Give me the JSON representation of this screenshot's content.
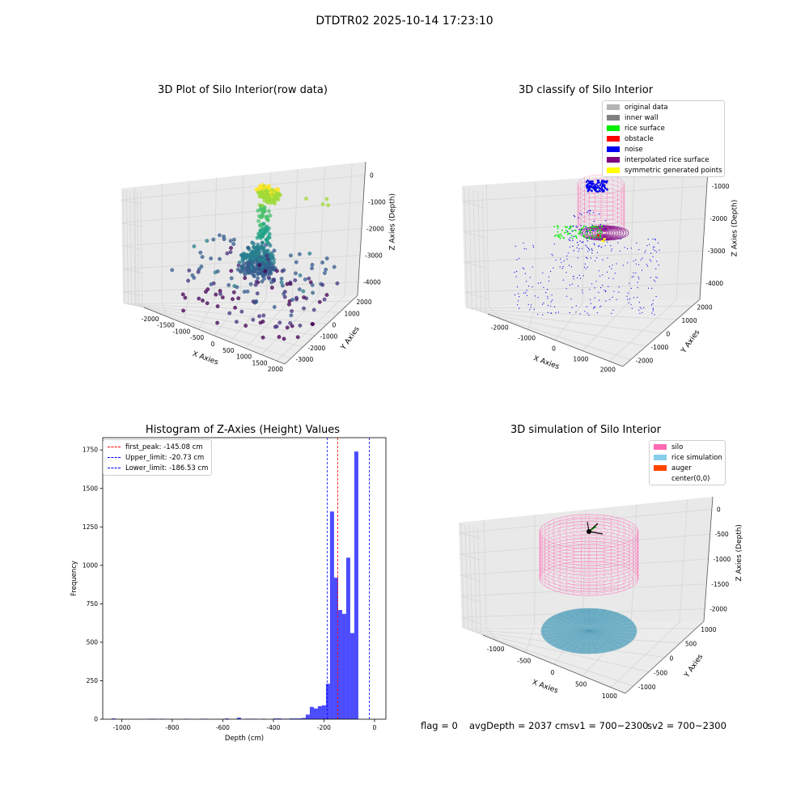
{
  "figure": {
    "suptitle": "DTDTR02 2025-10-14 17:23:10",
    "status": {
      "flag": "flag = 0",
      "avgdepth": "avgDepth = 2037 cmsv1 = 700~2300",
      "sv2": "sv2 = 700~2300"
    }
  },
  "panels": {
    "raw": {
      "title": "3D Plot of Silo Interior(row data)",
      "xlabel": "X Axies",
      "ylabel": "Y Axies",
      "zlabel": "Z Axies (Depth)",
      "xticks": [
        "-2000",
        "-1500",
        "-1000",
        "-500",
        "0",
        "500",
        "1000",
        "1500",
        "2000"
      ],
      "yticks": [
        "-3000",
        "-2000",
        "-1000",
        "0",
        "1000",
        "2000"
      ],
      "zticks": [
        "0",
        "-1000",
        "-2000",
        "-3000",
        "-4000"
      ]
    },
    "classify": {
      "title": "3D classify of Silo Interior",
      "xlabel": "X Axies",
      "ylabel": "Y Axies",
      "zlabel": "Z Axies (Depth)",
      "xticks": [
        "-2000",
        "-1000",
        "0",
        "1000",
        "2000"
      ],
      "yticks": [
        "-2000",
        "-1000",
        "0",
        "1000",
        "2000"
      ],
      "zticks": [
        "-1000",
        "-2000",
        "-3000",
        "-4000"
      ],
      "legend": [
        {
          "label": "original data",
          "color": "#b3b3b3"
        },
        {
          "label": "inner wall",
          "color": "#808080"
        },
        {
          "label": "rice surface",
          "color": "#00ee00"
        },
        {
          "label": "obstacle",
          "color": "#ff0000"
        },
        {
          "label": "noise",
          "color": "#0000ee"
        },
        {
          "label": "interpolated rice surface",
          "color": "#800080"
        },
        {
          "label": "symmetric generated points",
          "color": "#ffff00"
        }
      ]
    },
    "simulation": {
      "title": "3D simulation of Silo Interior",
      "xlabel": "X Axies",
      "ylabel": "Y Axies",
      "zlabel": "Z Axies (Depth)",
      "xticks": [
        "-1000",
        "-500",
        "0",
        "500",
        "1000"
      ],
      "yticks": [
        "-1000",
        "-500",
        "0",
        "500",
        "1000"
      ],
      "zticks": [
        "0",
        "-500",
        "-1000",
        "-1500",
        "-2000"
      ],
      "legend": [
        {
          "label": "silo",
          "color": "#ff69b4"
        },
        {
          "label": "rice simulation",
          "color": "#87ceeb"
        },
        {
          "label": "auger",
          "color": "#ff4500"
        },
        {
          "label": "center(0,0)",
          "color": "none"
        }
      ]
    }
  },
  "chart_data": {
    "type": "bar",
    "title": "Histogram of Z-Axies (Height) Values",
    "xlabel": "Depth (cm)",
    "ylabel": "Frequency",
    "xlim": [
      -1075,
      45
    ],
    "ylim": [
      0,
      1830
    ],
    "xticks": [
      -1000,
      -800,
      -600,
      -400,
      -200,
      0
    ],
    "yticks": [
      0,
      250,
      500,
      750,
      1000,
      1250,
      1500,
      1750
    ],
    "bin_width": 16,
    "bins": [
      {
        "x": -1040,
        "v": 5
      },
      {
        "x": -1000,
        "v": 0
      },
      {
        "x": -896,
        "v": 3
      },
      {
        "x": -880,
        "v": 3
      },
      {
        "x": -848,
        "v": 3
      },
      {
        "x": -752,
        "v": 3
      },
      {
        "x": -688,
        "v": 3
      },
      {
        "x": -672,
        "v": 3
      },
      {
        "x": -624,
        "v": 2
      },
      {
        "x": -592,
        "v": 5
      },
      {
        "x": -544,
        "v": 10
      },
      {
        "x": -512,
        "v": 3
      },
      {
        "x": -496,
        "v": 3
      },
      {
        "x": -480,
        "v": 3
      },
      {
        "x": -448,
        "v": 3
      },
      {
        "x": -400,
        "v": 5
      },
      {
        "x": -384,
        "v": 5
      },
      {
        "x": -368,
        "v": 3
      },
      {
        "x": -352,
        "v": 3
      },
      {
        "x": -336,
        "v": 5
      },
      {
        "x": -320,
        "v": 5
      },
      {
        "x": -304,
        "v": 5
      },
      {
        "x": -288,
        "v": 8
      },
      {
        "x": -272,
        "v": 30
      },
      {
        "x": -256,
        "v": 80
      },
      {
        "x": -240,
        "v": 70
      },
      {
        "x": -224,
        "v": 85
      },
      {
        "x": -208,
        "v": 90
      },
      {
        "x": -192,
        "v": 230
      },
      {
        "x": -176,
        "v": 1350
      },
      {
        "x": -160,
        "v": 920
      },
      {
        "x": -144,
        "v": 710
      },
      {
        "x": -128,
        "v": 685
      },
      {
        "x": -112,
        "v": 1050
      },
      {
        "x": -96,
        "v": 560
      },
      {
        "x": -80,
        "v": 1740
      }
    ],
    "vlines": [
      {
        "label": "first_peak: -145.08 cm",
        "x": -145.08,
        "color": "#ff0000"
      },
      {
        "label": "Upper_limit: -20.73 cm",
        "x": -20.73,
        "color": "#0000ff"
      },
      {
        "label": "Lower_limit: -186.53 cm",
        "x": -186.53,
        "color": "#0000ff"
      }
    ]
  }
}
